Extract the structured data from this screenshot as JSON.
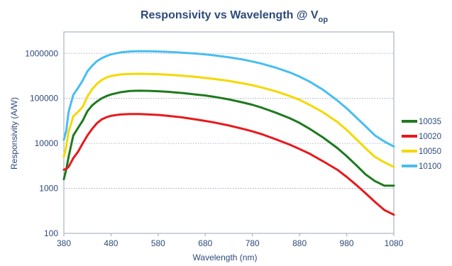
{
  "chart_data": {
    "type": "line",
    "title": "Responsivity vs Wavelength @ V",
    "title_subscript": "op",
    "xlabel": "Wavelength (nm)",
    "ylabel": "Responsivity (A/W)",
    "xlim": [
      380,
      1080
    ],
    "ylim": [
      100,
      3000000
    ],
    "yscale": "log",
    "x_ticks": [
      "380",
      "480",
      "580",
      "680",
      "780",
      "880",
      "980",
      "1080"
    ],
    "y_ticks": [
      "100",
      "1000",
      "10000",
      "100000",
      "1000000"
    ],
    "grid": "horizontal dotted",
    "legend_position": "right",
    "x": [
      380,
      385,
      390,
      400,
      410,
      420,
      430,
      440,
      450,
      460,
      470,
      480,
      500,
      520,
      540,
      560,
      580,
      600,
      630,
      660,
      680,
      700,
      730,
      760,
      780,
      800,
      830,
      860,
      880,
      900,
      930,
      960,
      980,
      1000,
      1020,
      1040,
      1060,
      1080
    ],
    "series": [
      {
        "name": "10035",
        "color": "#1e7a1e",
        "values": [
          1600,
          2600,
          5000,
          15000,
          22000,
          32000,
          52000,
          70000,
          85000,
          100000,
          112000,
          122000,
          137000,
          146000,
          148000,
          147000,
          144000,
          140000,
          132000,
          122000,
          116000,
          108000,
          95000,
          81000,
          72000,
          62000,
          48000,
          36000,
          28500,
          21500,
          13500,
          7900,
          5200,
          3300,
          2050,
          1450,
          1150,
          1150
        ]
      },
      {
        "name": "10020",
        "color": "#e8191c",
        "values": [
          2600,
          2700,
          3000,
          4700,
          6500,
          10000,
          15000,
          21000,
          28000,
          34000,
          38000,
          41000,
          44000,
          45000,
          45000,
          44000,
          43000,
          41000,
          38000,
          34000,
          31500,
          29000,
          25000,
          21000,
          18500,
          16000,
          12300,
          9300,
          7500,
          6000,
          4000,
          2600,
          1800,
          1200,
          780,
          500,
          330,
          260
        ]
      },
      {
        "name": "10050",
        "color": "#f5d800",
        "values": [
          5000,
          8500,
          18000,
          40000,
          50000,
          65000,
          110000,
          160000,
          210000,
          255000,
          290000,
          315000,
          340000,
          350000,
          352000,
          350000,
          345000,
          337000,
          320000,
          300000,
          285000,
          270000,
          245000,
          215000,
          196000,
          175000,
          143000,
          112000,
          93000,
          73000,
          49000,
          30000,
          20000,
          12500,
          7800,
          5000,
          3800,
          3000
        ]
      },
      {
        "name": "10100",
        "color": "#48bdf2",
        "values": [
          12000,
          19000,
          50000,
          120000,
          170000,
          250000,
          400000,
          530000,
          670000,
          780000,
          870000,
          950000,
          1050000,
          1100000,
          1120000,
          1115000,
          1100000,
          1080000,
          1040000,
          990000,
          950000,
          900000,
          820000,
          730000,
          660000,
          590000,
          480000,
          375000,
          305000,
          240000,
          155000,
          90000,
          60000,
          38000,
          24000,
          15000,
          11000,
          8500
        ]
      }
    ]
  }
}
